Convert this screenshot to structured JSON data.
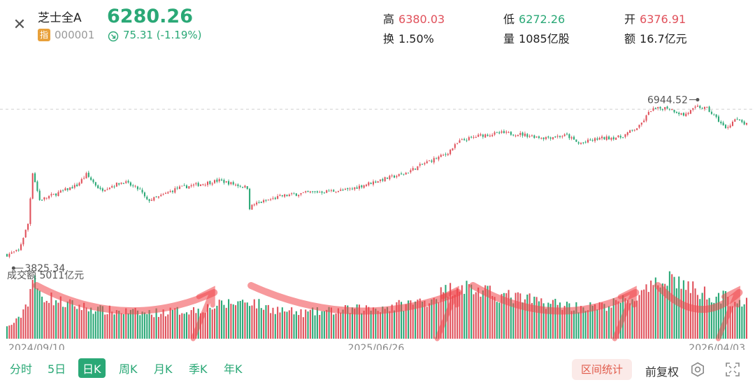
{
  "header": {
    "index_name": "芝士全A",
    "index_badge": "指",
    "index_code": "000001",
    "price": "6280.26",
    "change": "75.31 (-1.19%)"
  },
  "stats": [
    {
      "label": "高",
      "value": "6380.03",
      "tone": "red"
    },
    {
      "label": "低",
      "value": "6272.26",
      "tone": "green"
    },
    {
      "label": "开",
      "value": "6376.91",
      "tone": "red"
    },
    {
      "label": "换",
      "value": "1.50%",
      "tone": "plain"
    },
    {
      "label": "量",
      "value": "1085亿股",
      "tone": "plain"
    },
    {
      "label": "额",
      "value": "16.7亿元",
      "tone": "plain"
    }
  ],
  "chart_data": {
    "type": "candlestick",
    "high_annotation": "6944.52",
    "low_annotation": "3825.34",
    "volume_label": "成交额 5011亿元",
    "x_ticks": [
      "2024/09/10",
      "2025/06/26",
      "2026/04/03"
    ],
    "reference_level": 6280.26,
    "ylim": [
      3700,
      7000
    ],
    "close_anchors": [
      [
        0,
        3830
      ],
      [
        5,
        3900
      ],
      [
        9,
        4350
      ],
      [
        11,
        5220
      ],
      [
        14,
        4750
      ],
      [
        20,
        4840
      ],
      [
        30,
        5000
      ],
      [
        34,
        5180
      ],
      [
        40,
        4920
      ],
      [
        50,
        5060
      ],
      [
        57,
        4920
      ],
      [
        60,
        4740
      ],
      [
        65,
        4800
      ],
      [
        73,
        4950
      ],
      [
        83,
        5020
      ],
      [
        91,
        5080
      ],
      [
        98,
        5010
      ],
      [
        103,
        4960
      ],
      [
        104,
        4620
      ],
      [
        106,
        4680
      ],
      [
        118,
        4820
      ],
      [
        130,
        4880
      ],
      [
        146,
        4920
      ],
      [
        160,
        5090
      ],
      [
        170,
        5190
      ],
      [
        180,
        5390
      ],
      [
        188,
        5520
      ],
      [
        194,
        5740
      ],
      [
        203,
        5840
      ],
      [
        212,
        5880
      ],
      [
        220,
        5860
      ],
      [
        230,
        5800
      ],
      [
        240,
        5840
      ],
      [
        245,
        5700
      ],
      [
        254,
        5790
      ],
      [
        263,
        5810
      ],
      [
        271,
        5990
      ],
      [
        276,
        6270
      ],
      [
        283,
        6310
      ],
      [
        290,
        6180
      ],
      [
        296,
        6320
      ],
      [
        300,
        6290
      ],
      [
        305,
        6090
      ],
      [
        308,
        5950
      ],
      [
        312,
        6110
      ],
      [
        317,
        6020
      ]
    ],
    "volume_anchors": [
      [
        0,
        0.18
      ],
      [
        5,
        0.3
      ],
      [
        9,
        0.6
      ],
      [
        11,
        0.95
      ],
      [
        14,
        0.7
      ],
      [
        25,
        0.55
      ],
      [
        40,
        0.45
      ],
      [
        60,
        0.4
      ],
      [
        80,
        0.45
      ],
      [
        95,
        0.55
      ],
      [
        104,
        0.6
      ],
      [
        110,
        0.5
      ],
      [
        125,
        0.4
      ],
      [
        145,
        0.45
      ],
      [
        165,
        0.5
      ],
      [
        180,
        0.6
      ],
      [
        194,
        0.85
      ],
      [
        205,
        0.72
      ],
      [
        225,
        0.6
      ],
      [
        245,
        0.5
      ],
      [
        255,
        0.5
      ],
      [
        270,
        0.65
      ],
      [
        278,
        0.82
      ],
      [
        283,
        1.0
      ],
      [
        295,
        0.75
      ],
      [
        310,
        0.62
      ],
      [
        317,
        0.55
      ]
    ],
    "candle_count": 318,
    "volume_ratio": 0.35,
    "colors": {
      "up": "#e0505a",
      "down": "#2aa876",
      "arrow": "#f0464a"
    }
  },
  "tabs": [
    {
      "label": "分时",
      "active": false
    },
    {
      "label": "5日",
      "active": false
    },
    {
      "label": "日K",
      "active": true
    },
    {
      "label": "周K",
      "active": false
    },
    {
      "label": "月K",
      "active": false
    },
    {
      "label": "季K",
      "active": false
    },
    {
      "label": "年K",
      "active": false
    }
  ],
  "controls": {
    "range_stats": "区间统计",
    "adjust": "前复权"
  },
  "icons": {
    "close": "close-icon",
    "down_arrow": "down-arrow-circle-icon",
    "settings": "settings-icon",
    "fullscreen": "fullscreen-icon"
  }
}
